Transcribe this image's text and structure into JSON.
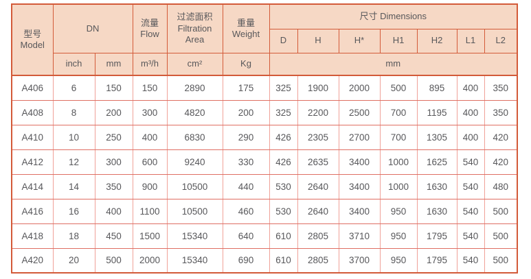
{
  "colors": {
    "header_bg": "#f6d8c5",
    "frame_border": "#d35a38",
    "body_vertical_border": "#f0a198",
    "body_horizontal_border": "#df6e62",
    "text": "#57575a"
  },
  "table": {
    "header": {
      "model_zh": "型号",
      "model_en": "Model",
      "dn": "DN",
      "flow_zh": "流量",
      "flow_en": "Flow",
      "filtration_zh": "过滤面积",
      "filtration_en_1": "Filtration",
      "filtration_en_2": "Area",
      "weight_zh": "重量",
      "weight_en": "Weight",
      "dimensions": "尺寸 Dimensions",
      "unit_inch": "inch",
      "unit_mm": "mm",
      "unit_flow": "m³/h",
      "unit_area": "cm²",
      "unit_weight": "Kg",
      "unit_dim": "mm",
      "dim_cols": [
        "D",
        "H",
        "H*",
        "H1",
        "H2",
        "L1",
        "L2"
      ]
    },
    "rows": [
      {
        "model": "A406",
        "dn_inch": "6",
        "dn_mm": "150",
        "flow": "150",
        "area": "2890",
        "weight": "175",
        "dims": [
          "325",
          "1900",
          "2000",
          "500",
          "895",
          "400",
          "350"
        ]
      },
      {
        "model": "A408",
        "dn_inch": "8",
        "dn_mm": "200",
        "flow": "300",
        "area": "4820",
        "weight": "200",
        "dims": [
          "325",
          "2200",
          "2500",
          "700",
          "1195",
          "400",
          "350"
        ]
      },
      {
        "model": "A410",
        "dn_inch": "10",
        "dn_mm": "250",
        "flow": "400",
        "area": "6830",
        "weight": "290",
        "dims": [
          "426",
          "2305",
          "2700",
          "700",
          "1305",
          "400",
          "420"
        ]
      },
      {
        "model": "A412",
        "dn_inch": "12",
        "dn_mm": "300",
        "flow": "600",
        "area": "9240",
        "weight": "330",
        "dims": [
          "426",
          "2635",
          "3400",
          "1000",
          "1625",
          "540",
          "420"
        ]
      },
      {
        "model": "A414",
        "dn_inch": "14",
        "dn_mm": "350",
        "flow": "900",
        "area": "10500",
        "weight": "440",
        "dims": [
          "530",
          "2640",
          "3400",
          "1000",
          "1630",
          "540",
          "480"
        ]
      },
      {
        "model": "A416",
        "dn_inch": "16",
        "dn_mm": "400",
        "flow": "1100",
        "area": "10500",
        "weight": "460",
        "dims": [
          "530",
          "2640",
          "3400",
          "950",
          "1630",
          "540",
          "500"
        ]
      },
      {
        "model": "A418",
        "dn_inch": "18",
        "dn_mm": "450",
        "flow": "1500",
        "area": "15340",
        "weight": "640",
        "dims": [
          "610",
          "2805",
          "3710",
          "950",
          "1795",
          "540",
          "500"
        ]
      },
      {
        "model": "A420",
        "dn_inch": "20",
        "dn_mm": "500",
        "flow": "2000",
        "area": "15340",
        "weight": "690",
        "dims": [
          "610",
          "2805",
          "3700",
          "950",
          "1795",
          "540",
          "500"
        ]
      }
    ]
  }
}
